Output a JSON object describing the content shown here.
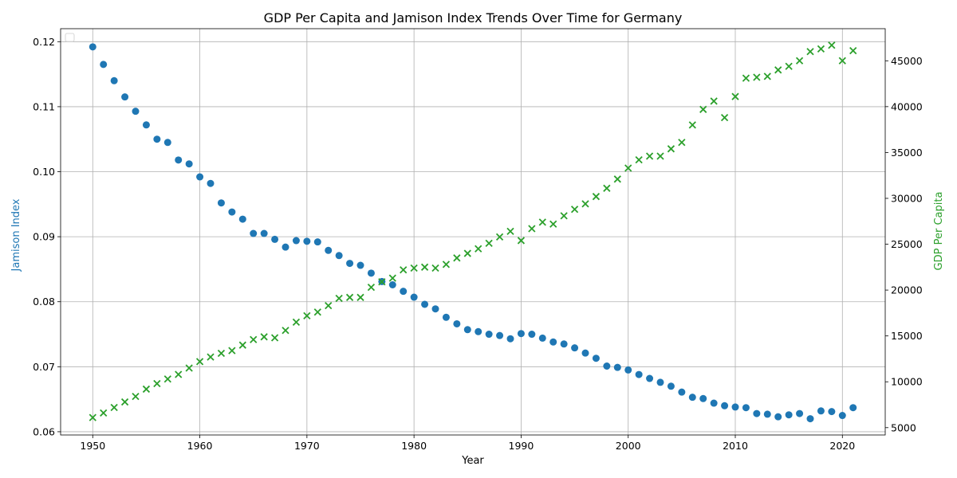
{
  "chart_data": {
    "type": "scatter",
    "title": "GDP Per Capita and Jamison Index Trends Over Time for Germany",
    "xlabel": "Year",
    "ylabel_left": "Jamison Index",
    "ylabel_right": "GDP Per Capita",
    "xlim": [
      1947,
      2024
    ],
    "ylim_left": [
      0.0595,
      0.122
    ],
    "ylim_right": [
      4200,
      48500
    ],
    "x_ticks": [
      1950,
      1960,
      1970,
      1980,
      1990,
      2000,
      2010,
      2020
    ],
    "y_left_ticks": [
      0.06,
      0.07,
      0.08,
      0.09,
      0.1,
      0.11,
      0.12
    ],
    "y_left_tick_labels": [
      "0.06",
      "0.07",
      "0.08",
      "0.09",
      "0.10",
      "0.11",
      "0.12"
    ],
    "y_right_ticks": [
      5000,
      10000,
      15000,
      20000,
      25000,
      30000,
      35000,
      40000,
      45000
    ],
    "grid": true,
    "legend": "top-left (empty)",
    "colors": {
      "left": "#1f77b4",
      "right": "#2ca02c"
    },
    "x": [
      1950,
      1951,
      1952,
      1953,
      1954,
      1955,
      1956,
      1957,
      1958,
      1959,
      1960,
      1961,
      1962,
      1963,
      1964,
      1965,
      1966,
      1967,
      1968,
      1969,
      1970,
      1971,
      1972,
      1973,
      1974,
      1975,
      1976,
      1977,
      1978,
      1979,
      1980,
      1981,
      1982,
      1983,
      1984,
      1985,
      1986,
      1987,
      1988,
      1989,
      1990,
      1991,
      1992,
      1993,
      1994,
      1995,
      1996,
      1997,
      1998,
      1999,
      2000,
      2001,
      2002,
      2003,
      2004,
      2005,
      2006,
      2007,
      2008,
      2009,
      2010,
      2011,
      2012,
      2013,
      2014,
      2015,
      2016,
      2017,
      2018,
      2019,
      2020,
      2021
    ],
    "series": [
      {
        "axis": "left",
        "marker": "circle",
        "values": [
          0.1192,
          0.1165,
          0.114,
          0.1115,
          0.1093,
          0.1072,
          0.105,
          0.1045,
          0.1018,
          0.1012,
          0.0992,
          0.0982,
          0.0952,
          0.0938,
          0.0927,
          0.0905,
          0.0905,
          0.0896,
          0.0884,
          0.0894,
          0.0893,
          0.0892,
          0.0879,
          0.0871,
          0.0859,
          0.0856,
          0.0844,
          0.0831,
          0.0826,
          0.0816,
          0.0807,
          0.0796,
          0.0789,
          0.0776,
          0.0766,
          0.0757,
          0.0754,
          0.075,
          0.0748,
          0.0743,
          0.0751,
          0.075,
          0.0744,
          0.0738,
          0.0735,
          0.0729,
          0.0721,
          0.0713,
          0.0701,
          0.0699,
          0.0695,
          0.0688,
          0.0682,
          0.0676,
          0.067,
          0.0661,
          0.0653,
          0.0651,
          0.0644,
          0.064,
          0.0638,
          0.0637,
          0.0628,
          0.0627,
          0.0623,
          0.0626,
          0.0628,
          0.062,
          0.0632,
          0.0631,
          0.0625,
          0.0637
        ]
      },
      {
        "axis": "right",
        "marker": "x",
        "values": [
          6100,
          6600,
          7200,
          7800,
          8400,
          9200,
          9800,
          10300,
          10800,
          11500,
          12200,
          12700,
          13100,
          13400,
          14000,
          14600,
          14900,
          14800,
          15600,
          16500,
          17200,
          17600,
          18300,
          19100,
          19200,
          19200,
          20300,
          20900,
          21300,
          22200,
          22400,
          22500,
          22400,
          22800,
          23500,
          24000,
          24500,
          25100,
          25800,
          26400,
          25400,
          26700,
          27400,
          27200,
          28100,
          28800,
          29400,
          30200,
          31100,
          32100,
          33300,
          34200,
          34600,
          34600,
          35400,
          36100,
          38000,
          39700,
          40600,
          38800,
          41100,
          43100,
          43200,
          43300,
          44000,
          44400,
          45000,
          46000,
          46300,
          46700,
          45000,
          46100
        ]
      }
    ]
  }
}
